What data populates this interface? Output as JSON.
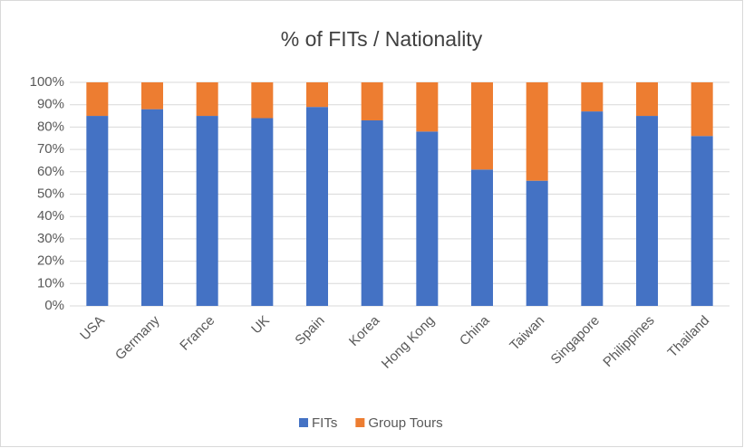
{
  "chart_data": {
    "type": "stacked_bar",
    "title": "% of FITs / Nationality",
    "categories": [
      "USA",
      "Germany",
      "France",
      "UK",
      "Spain",
      "Korea",
      "Hong Kong",
      "China",
      "Taiwan",
      "Singapore",
      "Philippines",
      "Thailand"
    ],
    "series": [
      {
        "name": "FITs",
        "color": "#4472c4",
        "values": [
          85,
          88,
          85,
          84,
          89,
          83,
          78,
          61,
          56,
          87,
          85,
          76
        ]
      },
      {
        "name": "Group Tours",
        "color": "#ed7d31",
        "values": [
          15,
          12,
          15,
          16,
          11,
          17,
          22,
          39,
          44,
          13,
          15,
          24
        ]
      }
    ],
    "ylim": [
      0,
      100
    ],
    "yticks": [
      {
        "value": 0,
        "label": "0%"
      },
      {
        "value": 10,
        "label": "10%"
      },
      {
        "value": 20,
        "label": "20%"
      },
      {
        "value": 30,
        "label": "30%"
      },
      {
        "value": 40,
        "label": "40%"
      },
      {
        "value": 50,
        "label": "50%"
      },
      {
        "value": 60,
        "label": "60%"
      },
      {
        "value": 70,
        "label": "70%"
      },
      {
        "value": 80,
        "label": "80%"
      },
      {
        "value": 90,
        "label": "90%"
      },
      {
        "value": 100,
        "label": "100%"
      }
    ],
    "grid": true,
    "legend": "bottom"
  }
}
